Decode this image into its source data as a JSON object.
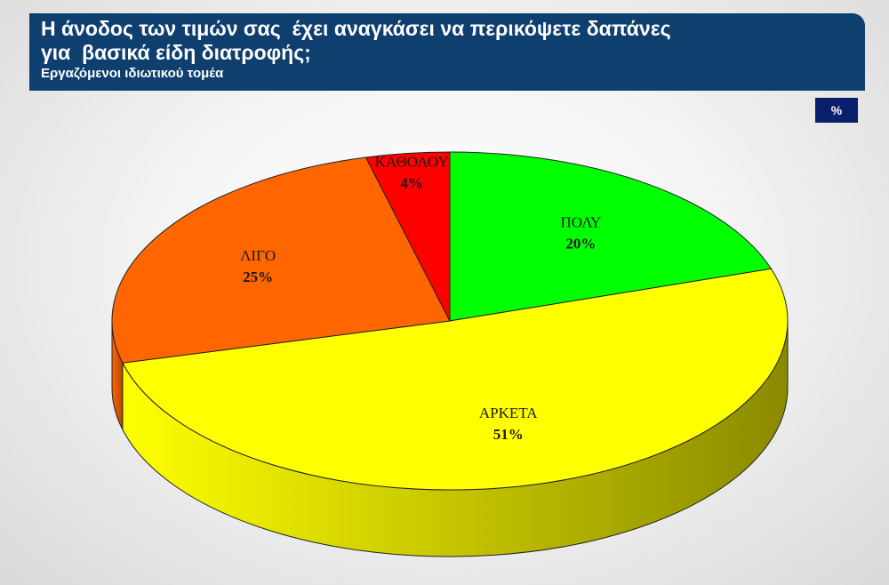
{
  "header": {
    "title_line1": "Η άνοδος των τιμών σας  έχει αναγκάσει να περικόψετε δαπάνες",
    "title_line2": "για  βασικά είδη διατροφής;",
    "subtitle": "Εργαζόμενοι ιδιωτικού τομέα"
  },
  "unit_label": "%",
  "chart_data": {
    "type": "pie",
    "three_d": true,
    "title": "Η άνοδος των τιμών σας  έχει αναγκάσει να περικόψετε δαπάνες για  βασικά είδη διατροφής;",
    "subtitle": "Εργαζόμενοι ιδιωτικού τομέα",
    "unit": "%",
    "slices": [
      {
        "label": "ΠΟΛΥ",
        "value": 20,
        "value_label": "20%",
        "color": "#00ff00",
        "side_color": "#009900"
      },
      {
        "label": "ΑΡΚΕΤΑ",
        "value": 51,
        "value_label": "51%",
        "color": "#ffff00",
        "side_color": "#8a8a00"
      },
      {
        "label": "ΛΙΓΟ",
        "value": 25,
        "value_label": "25%",
        "color": "#ff6600",
        "side_color": "#b34700"
      },
      {
        "label": "ΚΑΘΟΛΟΥ",
        "value": 4,
        "value_label": "4%",
        "color": "#ff0000",
        "side_color": "#b30000"
      }
    ]
  }
}
